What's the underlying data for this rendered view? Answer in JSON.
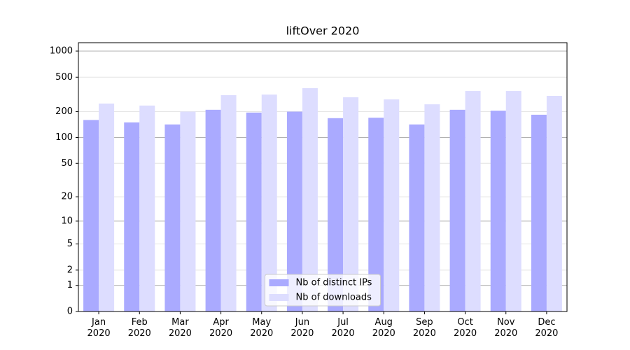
{
  "chart_data": {
    "type": "bar",
    "title": "liftOver 2020",
    "categories": [
      "Jan\n2020",
      "Feb\n2020",
      "Mar\n2020",
      "Apr\n2020",
      "May\n2020",
      "Jun\n2020",
      "Jul\n2020",
      "Aug\n2020",
      "Sep\n2020",
      "Oct\n2020",
      "Nov\n2020",
      "Dec\n2020"
    ],
    "series": [
      {
        "name": "Nb of distinct IPs",
        "color": "#aaaaff",
        "values": [
          160,
          150,
          142,
          210,
          195,
          200,
          168,
          170,
          142,
          210,
          205,
          184
        ]
      },
      {
        "name": "Nb of downloads",
        "color": "#ddddff",
        "values": [
          248,
          235,
          200,
          310,
          315,
          373,
          293,
          277,
          243,
          346,
          346,
          304
        ]
      }
    ],
    "yscale": "symlog",
    "ylim": [
      0,
      1250
    ],
    "yticks": [
      0,
      1,
      2,
      5,
      10,
      20,
      50,
      100,
      200,
      500,
      1000
    ],
    "grid": true,
    "legend": "lower center"
  }
}
